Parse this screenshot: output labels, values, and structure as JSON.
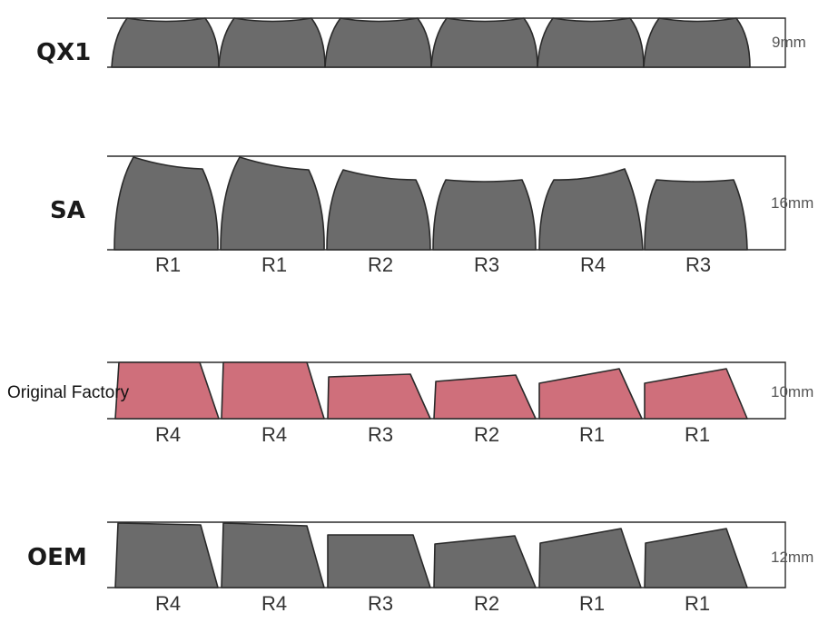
{
  "colors": {
    "gray_key": "#6b6b6b",
    "pink_key": "#cf6f7b",
    "outline": "#2a2a2a"
  },
  "profiles": [
    {
      "name": "QX1",
      "height_label": "9mm",
      "key_style": "spherical-uniform",
      "color": "gray",
      "row_labels": []
    },
    {
      "name": "SA",
      "height_label": "16mm",
      "key_style": "spherical-sculpted",
      "color": "gray",
      "row_labels": [
        "R1",
        "R1",
        "R2",
        "R3",
        "R4",
        "R3"
      ]
    },
    {
      "name": "Original Factory",
      "height_label": "10mm",
      "key_style": "cylindrical-sculpted",
      "color": "pink",
      "row_labels": [
        "R4",
        "R4",
        "R3",
        "R2",
        "R1",
        "R1"
      ]
    },
    {
      "name": "OEM",
      "height_label": "12mm",
      "key_style": "cylindrical-sculpted",
      "color": "gray",
      "row_labels": [
        "R4",
        "R4",
        "R3",
        "R2",
        "R1",
        "R1"
      ]
    }
  ]
}
